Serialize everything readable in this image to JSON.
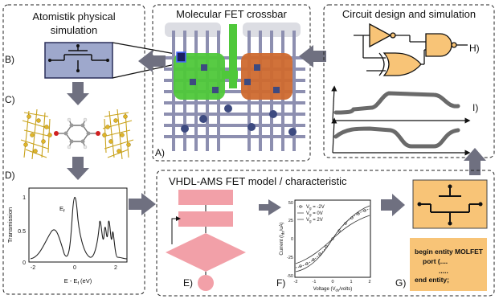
{
  "panels": {
    "atomistic": {
      "title_line1": "Atomistik physical",
      "title_line2": "simulation"
    },
    "crossbar": {
      "title": "Molecular FET crossbar"
    },
    "circuit": {
      "title": "Circuit design and simulation"
    },
    "vhdl": {
      "title": "VHDL-AMS FET model / characteristic"
    }
  },
  "labels": {
    "a": "A)",
    "b": "B)",
    "c": "C)",
    "d": "D)",
    "e": "E)",
    "f": "F)",
    "g": "G)",
    "h": "H)",
    "i": "I)"
  },
  "transmission_plot": {
    "ylabel": "Transmission",
    "xlabel": "E - E",
    "xlabel_sub": "f",
    "xlabel_unit": " (eV)",
    "ef_label": "E",
    "ef_sub": "f",
    "yticks": [
      "1",
      "0.5",
      "0"
    ],
    "xticks": [
      "-2",
      "0",
      "2"
    ]
  },
  "iv_plot": {
    "ylabel": "Current (I",
    "ylabel_sub": "ds",
    "ylabel_unit": "/uA)",
    "xlabel": "Voltage (V",
    "xlabel_sub": "ds",
    "xlabel_unit": "/volts)",
    "yticks": [
      "50",
      "25",
      "0",
      "-25",
      "-50"
    ],
    "xticks": [
      "-2",
      "-1",
      "0",
      "1",
      "2"
    ],
    "legend": [
      {
        "vg": "V",
        "sub": "g",
        "rest": " = -2V"
      },
      {
        "vg": "V",
        "sub": "g",
        "rest": " = 0V"
      },
      {
        "vg": "V",
        "sub": "g",
        "rest": " = 2V"
      }
    ]
  },
  "vhdl_code": {
    "line1": "begin entity  MOLFET",
    "line2": "port (....",
    "line3": ".....",
    "line4": "end entity;"
  },
  "colors": {
    "device_blue": "#9ea8cc",
    "crossbar_green": "#4fc83a",
    "crossbar_orange": "#cf6a2f",
    "crossbar_lines": "#8d8fb0",
    "flow_pink": "#f2a0a8",
    "model_orange": "#f8c477",
    "arrow_gray": "#6f7080"
  }
}
